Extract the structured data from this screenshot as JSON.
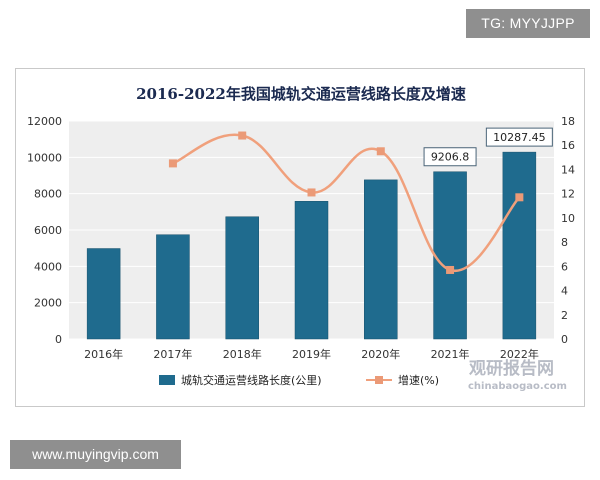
{
  "badges": {
    "tg": "TG: MYYJJPP",
    "site": "www.muyingvip.com"
  },
  "watermark": {
    "cn": "观研报告网",
    "en": "chinabaogao.com"
  },
  "colors": {
    "bar": "#1f6b8e",
    "bar_edge": "#154f6a",
    "line": "#f0a07c",
    "marker": "#eb9a77",
    "plot_bg": "#eeeeee",
    "gridline": "#ffffff"
  },
  "chart_data": {
    "type": "bar",
    "title": "2016-2022年我国城轨交通运营线路长度及增速",
    "categories": [
      "2016年",
      "2017年",
      "2018年",
      "2019年",
      "2020年",
      "2021年",
      "2022年"
    ],
    "series": [
      {
        "name": "城轨交通运营线路长度(公里)",
        "type": "bar",
        "axis": "left",
        "values": [
          4980,
          5740,
          6730,
          7580,
          8760,
          9206.8,
          10287.45
        ]
      },
      {
        "name": "增速(%)",
        "type": "line",
        "axis": "right",
        "values": [
          null,
          14.5,
          16.8,
          12.1,
          15.5,
          5.7,
          11.7
        ]
      }
    ],
    "data_labels": [
      {
        "index": 5,
        "text": "9206.8"
      },
      {
        "index": 6,
        "text": "10287.45"
      }
    ],
    "y_left": {
      "min": 0,
      "max": 12000,
      "step": 2000,
      "ticks": [
        "0",
        "2000",
        "4000",
        "6000",
        "8000",
        "10000",
        "12000"
      ]
    },
    "y_right": {
      "min": 0,
      "max": 18,
      "step": 2,
      "ticks": [
        "0",
        "2",
        "4",
        "6",
        "8",
        "10",
        "12",
        "14",
        "16",
        "18"
      ]
    },
    "grid": true,
    "legend_position": "bottom"
  }
}
